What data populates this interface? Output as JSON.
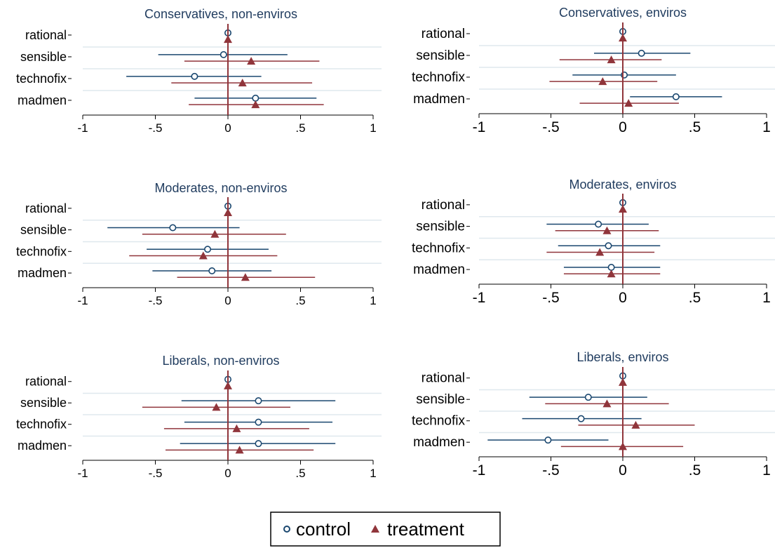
{
  "colors": {
    "control": "#1a476f",
    "treatment": "#90353b",
    "title": "#1f3b5e",
    "grid": "#dfe8ee",
    "axis": "#000000"
  },
  "legend": {
    "placement": "bottom-center",
    "control_label": "control",
    "treatment_label": "treatment"
  },
  "chart_data": [
    {
      "type": "dot-whisker",
      "title": "Conservatives, non-enviros",
      "categories": [
        "rational",
        "sensible",
        "technofix",
        "madmen"
      ],
      "xlim": [
        -1,
        1
      ],
      "xticks": [
        -1,
        -0.5,
        0,
        0.5,
        1
      ],
      "xtick_labels": [
        "-1",
        "-.5",
        "0",
        ".5",
        "1"
      ],
      "reference_line": 0,
      "series": [
        {
          "name": "control",
          "marker": "hollow-circle",
          "estimates": [
            0,
            -0.03,
            -0.23,
            0.19
          ],
          "ci_low": [
            0,
            -0.48,
            -0.7,
            -0.23
          ],
          "ci_high": [
            0,
            0.41,
            0.23,
            0.61
          ]
        },
        {
          "name": "treatment",
          "marker": "triangle",
          "estimates": [
            0,
            0.16,
            0.1,
            0.19
          ],
          "ci_low": [
            0,
            -0.3,
            -0.39,
            -0.27
          ],
          "ci_high": [
            0,
            0.63,
            0.58,
            0.66
          ]
        }
      ]
    },
    {
      "type": "dot-whisker",
      "title": "Conservatives, enviros",
      "categories": [
        "rational",
        "sensible",
        "technofix",
        "madmen"
      ],
      "xlim": [
        -1,
        1
      ],
      "xticks": [
        -1,
        -0.5,
        0,
        0.5,
        1
      ],
      "xtick_labels": [
        "-1",
        "-.5",
        "0",
        ".5",
        "1"
      ],
      "reference_line": 0,
      "series": [
        {
          "name": "control",
          "marker": "hollow-circle",
          "estimates": [
            0,
            0.13,
            0.01,
            0.37
          ],
          "ci_low": [
            0,
            -0.2,
            -0.35,
            0.05
          ],
          "ci_high": [
            0,
            0.47,
            0.37,
            0.69
          ]
        },
        {
          "name": "treatment",
          "marker": "triangle",
          "estimates": [
            0,
            -0.08,
            -0.14,
            0.04
          ],
          "ci_low": [
            0,
            -0.44,
            -0.51,
            -0.3
          ],
          "ci_high": [
            0,
            0.27,
            0.24,
            0.39
          ]
        }
      ]
    },
    {
      "type": "dot-whisker",
      "title": "Moderates, non-enviros",
      "categories": [
        "rational",
        "sensible",
        "technofix",
        "madmen"
      ],
      "xlim": [
        -1,
        1
      ],
      "xticks": [
        -1,
        -0.5,
        0,
        0.5,
        1
      ],
      "xtick_labels": [
        "-1",
        "-.5",
        "0",
        ".5",
        "1"
      ],
      "reference_line": 0,
      "series": [
        {
          "name": "control",
          "marker": "hollow-circle",
          "estimates": [
            0,
            -0.38,
            -0.14,
            -0.11
          ],
          "ci_low": [
            0,
            -0.83,
            -0.56,
            -0.52
          ],
          "ci_high": [
            0,
            0.08,
            0.28,
            0.3
          ]
        },
        {
          "name": "treatment",
          "marker": "triangle",
          "estimates": [
            0,
            -0.09,
            -0.17,
            0.12
          ],
          "ci_low": [
            0,
            -0.59,
            -0.68,
            -0.35
          ],
          "ci_high": [
            0,
            0.4,
            0.34,
            0.6
          ]
        }
      ]
    },
    {
      "type": "dot-whisker",
      "title": "Moderates, enviros",
      "categories": [
        "rational",
        "sensible",
        "technofix",
        "madmen"
      ],
      "xlim": [
        -1,
        1
      ],
      "xticks": [
        -1,
        -0.5,
        0,
        0.5,
        1
      ],
      "xtick_labels": [
        "-1",
        "-.5",
        "0",
        ".5",
        "1"
      ],
      "reference_line": 0,
      "series": [
        {
          "name": "control",
          "marker": "hollow-circle",
          "estimates": [
            0,
            -0.17,
            -0.1,
            -0.08
          ],
          "ci_low": [
            0,
            -0.53,
            -0.45,
            -0.41
          ],
          "ci_high": [
            0,
            0.18,
            0.26,
            0.26
          ]
        },
        {
          "name": "treatment",
          "marker": "triangle",
          "estimates": [
            0,
            -0.11,
            -0.16,
            -0.08
          ],
          "ci_low": [
            0,
            -0.47,
            -0.53,
            -0.41
          ],
          "ci_high": [
            0,
            0.25,
            0.22,
            0.26
          ]
        }
      ]
    },
    {
      "type": "dot-whisker",
      "title": "Liberals, non-enviros",
      "categories": [
        "rational",
        "sensible",
        "technofix",
        "madmen"
      ],
      "xlim": [
        -1,
        1
      ],
      "xticks": [
        -1,
        -0.5,
        0,
        0.5,
        1
      ],
      "xtick_labels": [
        "-1",
        "-.5",
        "0",
        ".5",
        "1"
      ],
      "reference_line": 0,
      "series": [
        {
          "name": "control",
          "marker": "hollow-circle",
          "estimates": [
            0,
            0.21,
            0.21,
            0.21
          ],
          "ci_low": [
            0,
            -0.32,
            -0.3,
            -0.33
          ],
          "ci_high": [
            0,
            0.74,
            0.72,
            0.74
          ]
        },
        {
          "name": "treatment",
          "marker": "triangle",
          "estimates": [
            0,
            -0.08,
            0.06,
            0.08
          ],
          "ci_low": [
            0,
            -0.59,
            -0.44,
            -0.43
          ],
          "ci_high": [
            0,
            0.43,
            0.56,
            0.59
          ]
        }
      ]
    },
    {
      "type": "dot-whisker",
      "title": "Liberals, enviros",
      "categories": [
        "rational",
        "sensible",
        "technofix",
        "madmen"
      ],
      "xlim": [
        -1,
        1
      ],
      "xticks": [
        -1,
        -0.5,
        0,
        0.5,
        1
      ],
      "xtick_labels": [
        "-1",
        "-.5",
        "0",
        ".5",
        "1"
      ],
      "reference_line": 0,
      "series": [
        {
          "name": "control",
          "marker": "hollow-circle",
          "estimates": [
            0,
            -0.24,
            -0.29,
            -0.52
          ],
          "ci_low": [
            0,
            -0.65,
            -0.7,
            -0.94
          ],
          "ci_high": [
            0,
            0.17,
            0.13,
            -0.1
          ]
        },
        {
          "name": "treatment",
          "marker": "triangle",
          "estimates": [
            0,
            -0.11,
            0.09,
            0.0
          ],
          "ci_low": [
            0,
            -0.54,
            -0.31,
            -0.43
          ],
          "ci_high": [
            0,
            0.32,
            0.5,
            0.42
          ]
        }
      ]
    }
  ]
}
